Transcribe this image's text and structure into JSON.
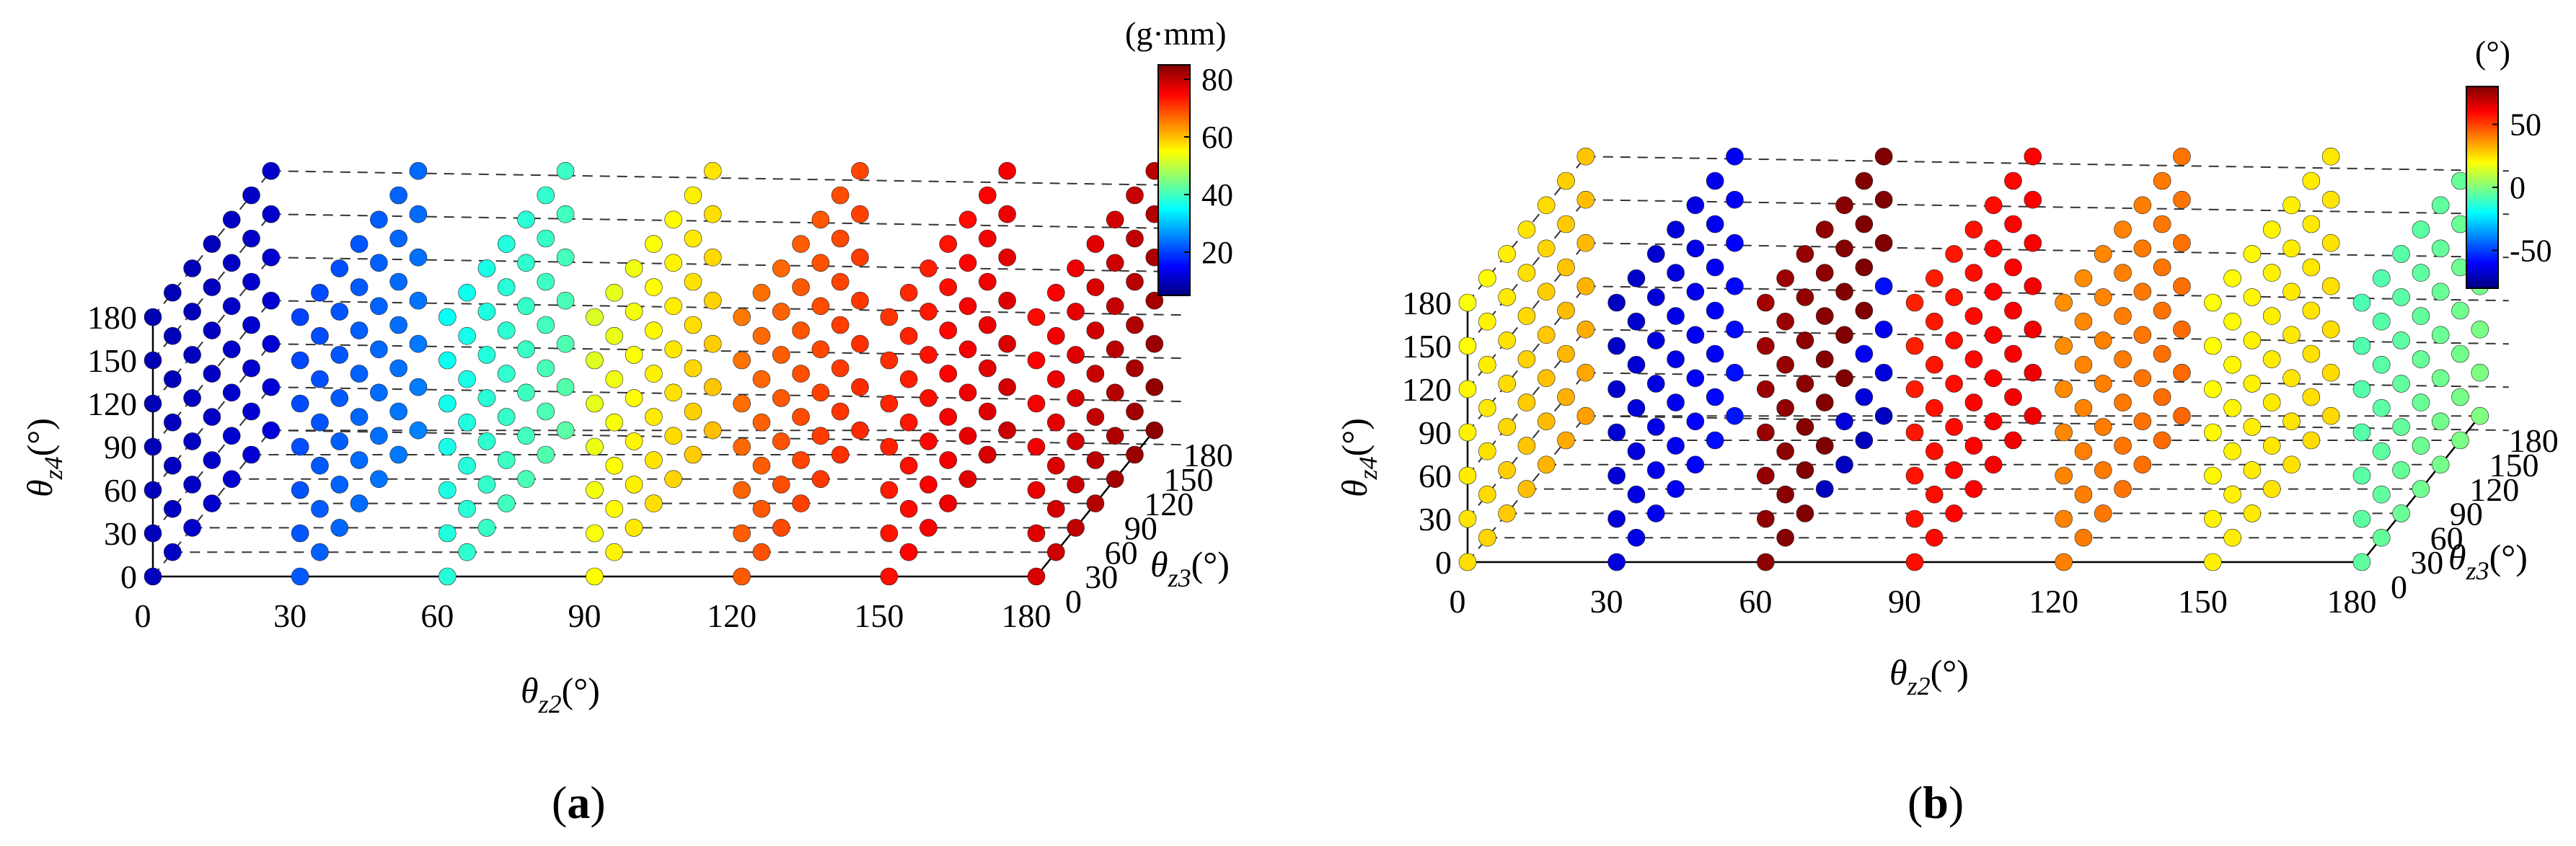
{
  "chart_data": [
    {
      "type": "scatter",
      "panel": "(a)",
      "panel_letter": "a",
      "colorbar_unit": "(g·mm)",
      "colorbar_ticks": [
        20,
        40,
        60,
        80
      ],
      "colorbar_range": [
        5,
        85
      ],
      "xlabel": "θz2(°)",
      "ylabel": "θz3(°)",
      "zlabel": "θz4(°)",
      "x_ticks": [
        0,
        30,
        60,
        90,
        120,
        150,
        180
      ],
      "y_ticks": [
        0,
        30,
        60,
        90,
        120,
        150,
        180
      ],
      "z_ticks": [
        0,
        30,
        60,
        90,
        120,
        150,
        180
      ],
      "grid_step_deg": 30,
      "series": [
        {
          "theta_z2": 0,
          "base_value": 10,
          "band": 2
        },
        {
          "theta_z2": 30,
          "base_value": 22,
          "band": 3
        },
        {
          "theta_z2": 60,
          "base_value": 38,
          "band": 4
        },
        {
          "theta_z2": 90,
          "base_value": 55,
          "band": 5
        },
        {
          "theta_z2": 120,
          "base_value": 68,
          "band": 4
        },
        {
          "theta_z2": 150,
          "base_value": 74,
          "band": 5
        },
        {
          "theta_z2": 180,
          "base_value": 78,
          "band": 6
        }
      ]
    },
    {
      "type": "scatter",
      "panel": "(b)",
      "panel_letter": "b",
      "colorbar_unit": "(°)",
      "colorbar_ticks": [
        -50,
        0,
        50
      ],
      "colorbar_range": [
        -80,
        80
      ],
      "xlabel": "θz2(°)",
      "ylabel": "θz3(°)",
      "zlabel": "θz4(°)",
      "x_ticks": [
        0,
        30,
        60,
        90,
        120,
        150,
        180
      ],
      "y_ticks": [
        0,
        30,
        60,
        90,
        120,
        150,
        180
      ],
      "z_ticks": [
        0,
        30,
        60,
        90,
        120,
        150,
        180
      ],
      "grid_step_deg": 30,
      "series": [
        {
          "theta_z2": 0,
          "base_value": 25,
          "band": 10
        },
        {
          "theta_z2": 30,
          "base_value": -65,
          "band": 8
        },
        {
          "theta_z2": 60,
          "base_value": 78,
          "band": 6
        },
        {
          "theta_z2": 90,
          "base_value": 58,
          "band": 5
        },
        {
          "theta_z2": 120,
          "base_value": 40,
          "band": 4
        },
        {
          "theta_z2": 150,
          "base_value": 22,
          "band": 4
        },
        {
          "theta_z2": 180,
          "base_value": -5,
          "band": 5
        }
      ],
      "low_patch": {
        "theta_z2": 60,
        "theta_z4_max": 120,
        "value": -70
      }
    }
  ],
  "colors": {
    "jet": [
      "#00007f",
      "#0000ff",
      "#0080ff",
      "#00ffff",
      "#80ff80",
      "#ffff00",
      "#ff8000",
      "#ff0000",
      "#7f0000"
    ]
  }
}
